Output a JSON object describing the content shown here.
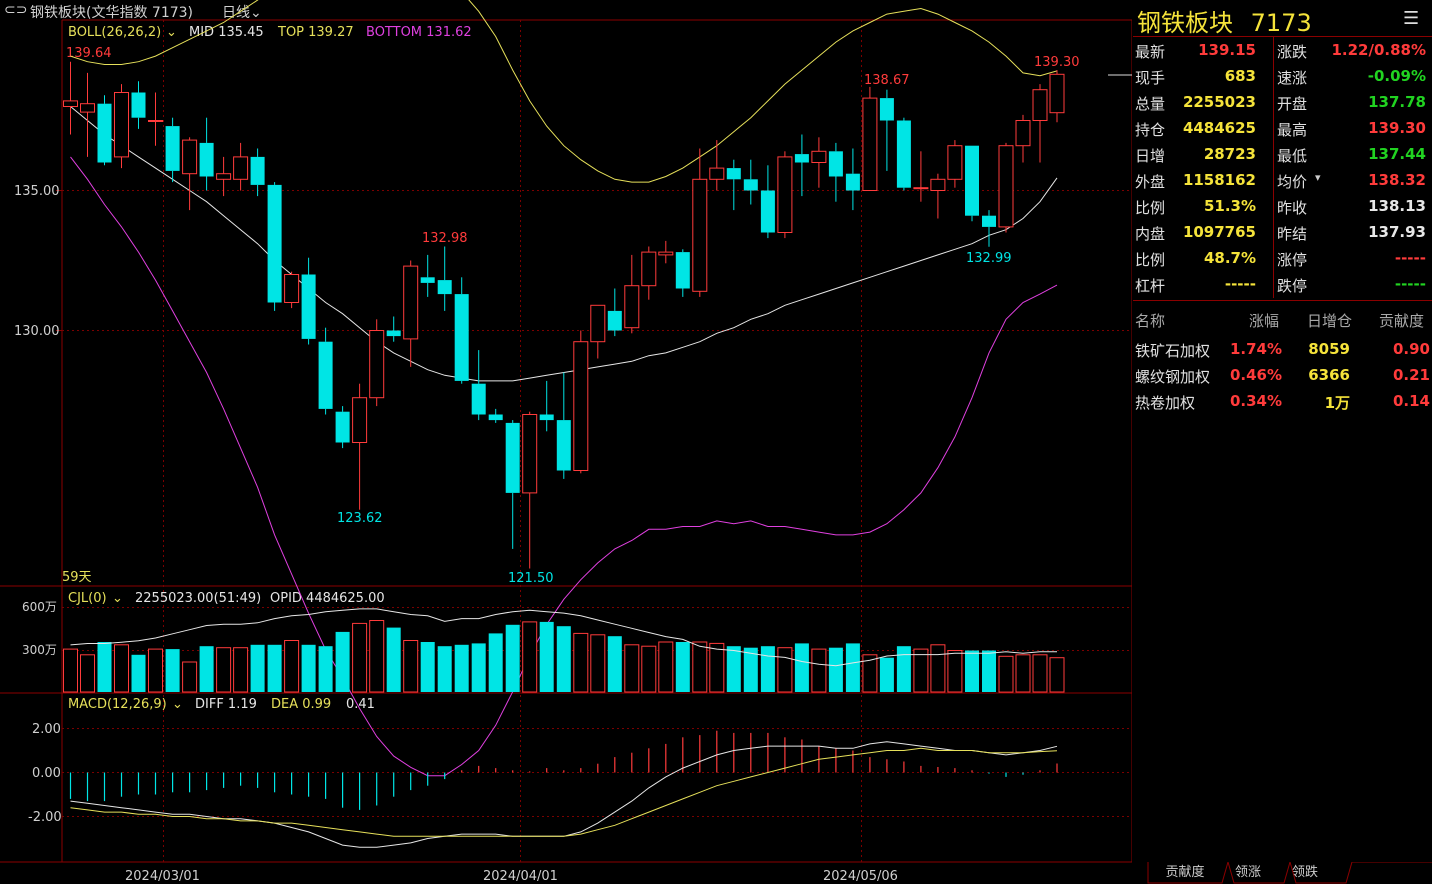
{
  "window": {
    "title": "钢铁板块(文华指数 7173)",
    "period": "日线"
  },
  "main_legend": {
    "boll": "BOLL(26,26,2)",
    "mid": "MID 135.45",
    "top": "TOP 139.27",
    "bottom": "BOTTOM 131.62"
  },
  "y_axis": {
    "tick1": "135.00",
    "tick2": "130.00"
  },
  "annotations": {
    "a1": "139.64",
    "a2": "123.62",
    "a3": "132.98",
    "a4": "121.50",
    "a5": "138.67",
    "a6": "132.99",
    "a7": "139.30",
    "days": "59天"
  },
  "volume_legend": {
    "cjl": "CJL(0)",
    "values": "2255023.00(51:49)",
    "opid": "OPID 4484625.00",
    "tick_600": "600万",
    "tick_300": "300万"
  },
  "macd_legend": {
    "macd": "MACD(12,26,9)",
    "diff": "DIFF 1.19",
    "dea": "DEA 0.99",
    "macd_val": "0.41",
    "tick_2": "2.00",
    "tick_0": "0.00",
    "tick_m2": "-2.00"
  },
  "x_axis": {
    "d1": "2024/03/01",
    "d2": "2024/04/01",
    "d3": "2024/05/06"
  },
  "colors": {
    "up": "#ff3b3b",
    "down": "#00e5e5",
    "mid": "#e6e6e6",
    "top": "#e6e05a",
    "bottom": "#e040e0",
    "grid": "#8b0000"
  },
  "panel": {
    "title": "钢铁板块",
    "code": "7173",
    "menu_icon": "menu-icon",
    "quote_left": [
      {
        "label": "最新",
        "value": "139.15",
        "color": "red"
      },
      {
        "label": "现手",
        "value": "683",
        "color": "yellow"
      },
      {
        "label": "总量",
        "value": "2255023",
        "color": "yellow"
      },
      {
        "label": "持仓",
        "value": "4484625",
        "color": "yellow"
      },
      {
        "label": "日增",
        "value": "28723",
        "color": "yellow"
      },
      {
        "label": "外盘",
        "value": "1158162",
        "color": "yellow"
      },
      {
        "label": "比例",
        "value": "51.3%",
        "color": "yellow"
      },
      {
        "label": "内盘",
        "value": "1097765",
        "color": "yellow"
      },
      {
        "label": "比例",
        "value": "48.7%",
        "color": "yellow"
      },
      {
        "label": "杠杆",
        "value": "-----",
        "color": "yellow"
      }
    ],
    "quote_right": [
      {
        "label": "涨跌",
        "value": "1.22/0.88%",
        "color": "red"
      },
      {
        "label": "速涨",
        "value": "-0.09%",
        "color": "green"
      },
      {
        "label": "开盘",
        "value": "137.78",
        "color": "green"
      },
      {
        "label": "最高",
        "value": "139.30",
        "color": "red"
      },
      {
        "label": "最低",
        "value": "137.44",
        "color": "green"
      },
      {
        "label": "均价",
        "value": "138.32",
        "color": "red"
      },
      {
        "label": "昨收",
        "value": "138.13",
        "color": "white"
      },
      {
        "label": "昨结",
        "value": "137.93",
        "color": "white"
      },
      {
        "label": "涨停",
        "value": "-----",
        "color": "red"
      },
      {
        "label": "跌停",
        "value": "-----",
        "color": "green"
      }
    ],
    "table_headers": [
      "名称",
      "涨幅",
      "日增仓",
      "贡献度"
    ],
    "table_rows": [
      {
        "name": "铁矿石加权",
        "change": "1.74%",
        "inc": "8059",
        "contrib": "0.90"
      },
      {
        "name": "螺纹钢加权",
        "change": "0.46%",
        "inc": "6366",
        "contrib": "0.21"
      },
      {
        "name": "热卷加权",
        "change": "0.34%",
        "inc": "1万",
        "contrib": "0.14"
      }
    ],
    "tabs": [
      "贡献度",
      "领涨",
      "领跌"
    ]
  },
  "chart_data": {
    "type": "candlestick",
    "ohlc": [
      [
        138.0,
        138.2,
        137.0,
        139.6
      ],
      [
        137.8,
        138.1,
        136.2,
        139.2
      ],
      [
        138.1,
        136.0,
        135.9,
        138.4
      ],
      [
        136.2,
        138.5,
        135.8,
        138.8
      ],
      [
        138.5,
        137.6,
        137.2,
        138.9
      ],
      [
        137.5,
        137.5,
        136.6,
        138.5
      ],
      [
        137.3,
        135.7,
        135.3,
        137.6
      ],
      [
        135.6,
        136.8,
        134.3,
        136.9
      ],
      [
        136.7,
        135.5,
        135.0,
        137.6
      ],
      [
        135.4,
        135.6,
        134.8,
        136.2
      ],
      [
        135.4,
        136.2,
        135.0,
        136.7
      ],
      [
        136.2,
        135.2,
        134.8,
        136.5
      ],
      [
        135.2,
        131.0,
        130.7,
        135.3
      ],
      [
        131.0,
        132.0,
        130.8,
        132.1
      ],
      [
        132.0,
        129.7,
        129.5,
        132.6
      ],
      [
        129.6,
        127.2,
        127.0,
        130.1
      ],
      [
        127.1,
        126.0,
        125.8,
        127.3
      ],
      [
        126.0,
        127.6,
        123.6,
        128.1
      ],
      [
        127.6,
        130.0,
        127.3,
        130.4
      ],
      [
        130.0,
        129.8,
        129.6,
        130.5
      ],
      [
        129.7,
        132.3,
        128.7,
        132.5
      ],
      [
        131.9,
        131.7,
        131.2,
        132.7
      ],
      [
        131.8,
        131.3,
        130.7,
        133.0
      ],
      [
        131.3,
        128.2,
        128.1,
        131.9
      ],
      [
        128.1,
        127.0,
        126.8,
        129.3
      ],
      [
        127.0,
        126.8,
        126.7,
        127.2
      ],
      [
        126.7,
        124.2,
        122.2,
        126.8
      ],
      [
        124.2,
        127.0,
        121.5,
        127.1
      ],
      [
        127.0,
        126.8,
        126.4,
        128.2
      ],
      [
        126.8,
        125.0,
        124.7,
        128.5
      ],
      [
        125.0,
        129.6,
        124.9,
        130.0
      ],
      [
        129.6,
        130.9,
        129.0,
        130.9
      ],
      [
        130.7,
        130.0,
        129.8,
        131.5
      ],
      [
        130.1,
        131.6,
        129.9,
        132.7
      ],
      [
        131.6,
        132.8,
        131.1,
        133.0
      ],
      [
        132.7,
        132.8,
        132.4,
        133.2
      ],
      [
        132.8,
        131.5,
        131.2,
        132.9
      ],
      [
        131.4,
        135.4,
        131.2,
        136.5
      ],
      [
        135.4,
        135.8,
        135.0,
        136.8
      ],
      [
        135.8,
        135.4,
        134.3,
        136.1
      ],
      [
        135.4,
        135.0,
        134.5,
        136.1
      ],
      [
        135.0,
        133.5,
        133.3,
        135.9
      ],
      [
        133.5,
        136.2,
        133.3,
        136.4
      ],
      [
        136.3,
        136.0,
        134.8,
        137.0
      ],
      [
        136.0,
        136.4,
        135.1,
        136.9
      ],
      [
        136.4,
        135.5,
        134.6,
        136.7
      ],
      [
        135.6,
        135.0,
        134.3,
        136.5
      ],
      [
        135.0,
        138.3,
        135.0,
        138.7
      ],
      [
        138.3,
        137.5,
        135.7,
        138.6
      ],
      [
        137.5,
        135.1,
        135.0,
        137.6
      ],
      [
        135.1,
        135.1,
        134.6,
        136.4
      ],
      [
        135.0,
        135.4,
        134.0,
        135.6
      ],
      [
        135.4,
        136.6,
        135.1,
        136.8
      ],
      [
        136.6,
        134.1,
        133.9,
        136.6
      ],
      [
        134.1,
        133.7,
        132.99,
        134.3
      ],
      [
        133.7,
        136.6,
        133.5,
        136.7
      ],
      [
        136.6,
        137.5,
        136.0,
        137.7
      ],
      [
        137.5,
        138.6,
        136.0,
        138.8
      ],
      [
        137.78,
        139.15,
        137.44,
        139.3
      ]
    ],
    "boll_mid": [
      138.0,
      137.5,
      137.0,
      136.6,
      136.2,
      135.8,
      135.4,
      135.0,
      134.6,
      134.1,
      133.6,
      133.1,
      132.5,
      132.0,
      131.5,
      131.0,
      130.6,
      130.1,
      129.6,
      129.2,
      128.9,
      128.6,
      128.4,
      128.3,
      128.2,
      128.2,
      128.2,
      128.3,
      128.4,
      128.5,
      128.6,
      128.7,
      128.8,
      128.9,
      129.1,
      129.2,
      129.4,
      129.6,
      129.9,
      130.1,
      130.4,
      130.6,
      130.9,
      131.1,
      131.3,
      131.5,
      131.7,
      131.9,
      132.1,
      132.3,
      132.5,
      132.7,
      132.9,
      133.1,
      133.4,
      133.6,
      134.0,
      134.6,
      135.45
    ],
    "boll_top": [
      139.8,
      139.6,
      139.5,
      139.5,
      139.6,
      139.8,
      140.1,
      140.4,
      140.7,
      141.0,
      141.4,
      141.8,
      142.3,
      142.7,
      143.1,
      143.4,
      143.6,
      143.7,
      143.7,
      143.6,
      143.4,
      143.1,
      142.7,
      142.1,
      141.4,
      140.5,
      139.3,
      138.2,
      137.3,
      136.6,
      136.1,
      135.7,
      135.4,
      135.3,
      135.3,
      135.5,
      135.8,
      136.2,
      136.6,
      137.1,
      137.6,
      138.2,
      138.8,
      139.3,
      139.8,
      140.3,
      140.7,
      141.0,
      141.3,
      141.4,
      141.5,
      141.3,
      141.0,
      140.7,
      140.3,
      139.8,
      139.2,
      139.1,
      139.27
    ],
    "boll_bottom": [
      136.2,
      135.4,
      134.5,
      133.7,
      132.8,
      131.8,
      130.7,
      129.6,
      128.5,
      127.2,
      125.8,
      124.4,
      122.7,
      121.3,
      119.9,
      118.6,
      117.6,
      116.5,
      115.5,
      114.8,
      114.4,
      114.1,
      114.1,
      114.5,
      115.0,
      115.9,
      117.1,
      118.4,
      119.5,
      120.4,
      121.1,
      121.7,
      122.2,
      122.5,
      122.9,
      122.9,
      123.0,
      123.0,
      123.2,
      123.1,
      123.2,
      123.0,
      123.0,
      122.9,
      122.8,
      122.7,
      122.7,
      122.8,
      123.1,
      123.6,
      124.2,
      125.1,
      126.2,
      127.6,
      129.2,
      130.4,
      131.0,
      131.3,
      131.62
    ],
    "volume": [
      3.0,
      2.6,
      3.5,
      3.3,
      2.6,
      3.0,
      3.0,
      2.1,
      3.2,
      3.1,
      3.1,
      3.3,
      3.3,
      3.6,
      3.3,
      3.2,
      4.2,
      4.8,
      5.0,
      4.5,
      3.6,
      3.5,
      3.2,
      3.3,
      3.4,
      4.1,
      4.7,
      4.9,
      4.9,
      4.6,
      4.1,
      4.0,
      3.9,
      3.3,
      3.2,
      3.5,
      3.5,
      3.5,
      3.4,
      3.2,
      3.1,
      3.2,
      3.1,
      3.4,
      3.0,
      3.1,
      3.4,
      2.6,
      2.4,
      3.2,
      3.0,
      3.3,
      2.9,
      2.9,
      2.9,
      2.5,
      2.6,
      2.6,
      2.4
    ],
    "opid": [
      3.4,
      3.5,
      3.5,
      3.6,
      3.7,
      3.9,
      4.2,
      4.5,
      4.8,
      4.9,
      4.9,
      5.0,
      5.3,
      5.5,
      5.6,
      5.8,
      5.9,
      6.0,
      6.0,
      5.8,
      5.6,
      5.5,
      5.1,
      5.3,
      5.3,
      5.6,
      5.8,
      5.9,
      5.8,
      5.7,
      5.5,
      5.2,
      4.9,
      4.6,
      4.3,
      4.0,
      3.8,
      3.3,
      3.1,
      3.0,
      2.8,
      2.6,
      2.5,
      2.2,
      2.0,
      1.9,
      2.1,
      2.3,
      2.6,
      2.7,
      2.7,
      2.7,
      2.8,
      2.8,
      2.8,
      2.9,
      2.8,
      2.9,
      2.9
    ],
    "macd_hist": [
      -1.2,
      -1.3,
      -1.3,
      -1.1,
      -1.0,
      -1.0,
      -0.9,
      -0.9,
      -0.8,
      -0.7,
      -0.6,
      -0.7,
      -0.9,
      -1.0,
      -1.1,
      -1.2,
      -1.6,
      -1.7,
      -1.5,
      -1.1,
      -0.8,
      -0.6,
      -0.3,
      0.1,
      0.3,
      0.2,
      0.1,
      0.05,
      0.2,
      0.1,
      0.2,
      0.4,
      0.7,
      0.9,
      1.1,
      1.3,
      1.6,
      1.7,
      1.9,
      1.8,
      1.8,
      1.8,
      1.6,
      1.5,
      1.2,
      1.1,
      1.0,
      0.7,
      0.6,
      0.5,
      0.3,
      0.25,
      0.2,
      0.1,
      -0.05,
      -0.2,
      -0.1,
      0.1,
      0.41
    ],
    "diff": [
      -1.3,
      -1.4,
      -1.5,
      -1.6,
      -1.7,
      -1.8,
      -1.9,
      -1.9,
      -2.0,
      -2.1,
      -2.1,
      -2.2,
      -2.3,
      -2.5,
      -2.7,
      -3.0,
      -3.3,
      -3.4,
      -3.4,
      -3.3,
      -3.2,
      -3.0,
      -2.9,
      -2.8,
      -2.8,
      -2.8,
      -2.9,
      -2.9,
      -2.9,
      -2.9,
      -2.7,
      -2.3,
      -1.8,
      -1.3,
      -0.7,
      -0.2,
      0.2,
      0.5,
      0.8,
      1.0,
      1.1,
      1.2,
      1.2,
      1.2,
      1.2,
      1.1,
      1.1,
      1.3,
      1.4,
      1.3,
      1.2,
      1.1,
      1.0,
      1.0,
      0.9,
      0.8,
      0.9,
      1.0,
      1.19
    ],
    "dea": [
      -1.6,
      -1.7,
      -1.8,
      -1.8,
      -1.9,
      -1.9,
      -2.0,
      -2.0,
      -2.1,
      -2.1,
      -2.2,
      -2.2,
      -2.3,
      -2.3,
      -2.4,
      -2.5,
      -2.6,
      -2.7,
      -2.8,
      -2.9,
      -2.9,
      -2.9,
      -2.9,
      -2.9,
      -2.9,
      -2.9,
      -2.9,
      -2.9,
      -2.9,
      -2.9,
      -2.8,
      -2.6,
      -2.4,
      -2.1,
      -1.8,
      -1.5,
      -1.2,
      -0.9,
      -0.6,
      -0.4,
      -0.2,
      0.0,
      0.2,
      0.4,
      0.6,
      0.7,
      0.8,
      0.9,
      1.0,
      1.0,
      1.1,
      1.0,
      1.0,
      1.0,
      0.9,
      0.9,
      0.9,
      0.95,
      0.99
    ]
  }
}
